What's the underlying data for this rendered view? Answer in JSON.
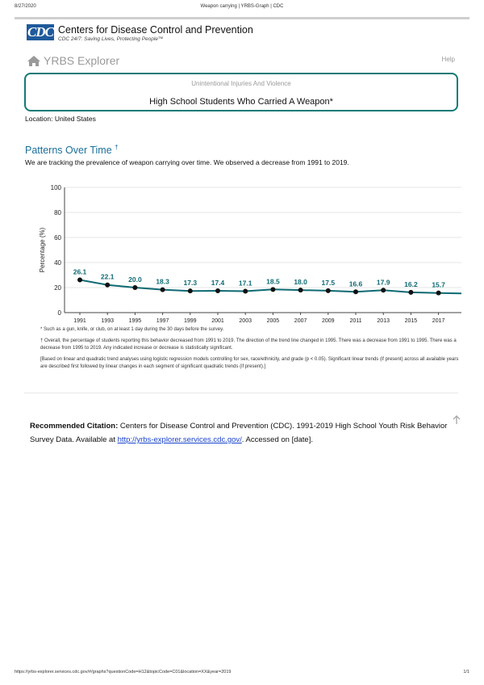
{
  "print_header": {
    "date": "8/27/2020",
    "title": "Weapon carrying | YRBS-Graph | CDC"
  },
  "cdc": {
    "logo_text": "CDC",
    "name": "Centers for Disease Control and Prevention",
    "tagline": "CDC 24/7: Saving Lives, Protecting People™"
  },
  "app": {
    "brand": "YRBS Explorer",
    "help": "Help",
    "home_icon": "home-icon"
  },
  "topic": {
    "category": "Unintentional Injuries And Violence",
    "title": "High School Students Who Carried A Weapon*"
  },
  "location": "Location: United States",
  "section": {
    "title": "Patterns Over Time",
    "title_mark": "†",
    "description": "We are tracking the prevalence of weapon carrying over time. We observed a decrease from 1991 to 2019."
  },
  "chart_data": {
    "type": "line",
    "ylabel": "Percentage (%)",
    "ylim": [
      0,
      100
    ],
    "yticks": [
      "0",
      "20",
      "40",
      "60",
      "80",
      "100"
    ],
    "grid": true,
    "x": [
      "1991",
      "1993",
      "1995",
      "1997",
      "1999",
      "2001",
      "2003",
      "2005",
      "2007",
      "2009",
      "2011",
      "2013",
      "2015",
      "2017"
    ],
    "values": [
      26.1,
      22.1,
      20.0,
      18.3,
      17.3,
      17.4,
      17.1,
      18.5,
      18.0,
      17.5,
      16.6,
      17.9,
      16.2,
      15.7
    ],
    "labels": [
      "26.1",
      "22.1",
      "20.0",
      "18.3",
      "17.3",
      "17.4",
      "17.1",
      "18.5",
      "18.0",
      "17.5",
      "16.6",
      "17.9",
      "16.2",
      "15.7"
    ],
    "colors": {
      "line": "#0e6a73",
      "label": "#0e6a73",
      "point": "#111111",
      "grid": "#e6e6e6"
    }
  },
  "notes": {
    "footnote_1": "* Such as a gun, knife, or club, on at least 1 day during the 30 days before the survey.",
    "footnote_2": "† Overall, the percentage of students reporting this behavior decreased from 1991 to 2019. The direction of the trend line changed in 1995. There was a decrease from 1991 to 1995. There was a decrease from 1995 to 2019. Any indicated increase or decrease is statistically significant.",
    "footnote_3": "[Based on linear and quadratic trend analyses using logistic regression models controlling for sex, race/ethnicity, and grade (p < 0.05). Significant linear trends (if present) across all available years are described first followed by linear changes in each segment of significant quadratic trends (if present).]"
  },
  "citation": {
    "label": "Recommended Citation:",
    "text": "Centers for Disease Control and Prevention (CDC). 1991-2019 High School Youth Risk Behavior Survey Data. Available at",
    "link": "http://yrbs-explorer.services.cdc.gov/",
    "suffix": ". Accessed on [date]."
  },
  "print_footer": {
    "url": "https://yrbs-explorer.services.cdc.gov/#/graphs?questionCode=H12&topicCode=C01&location=XX&year=2019",
    "page": "1/1"
  }
}
